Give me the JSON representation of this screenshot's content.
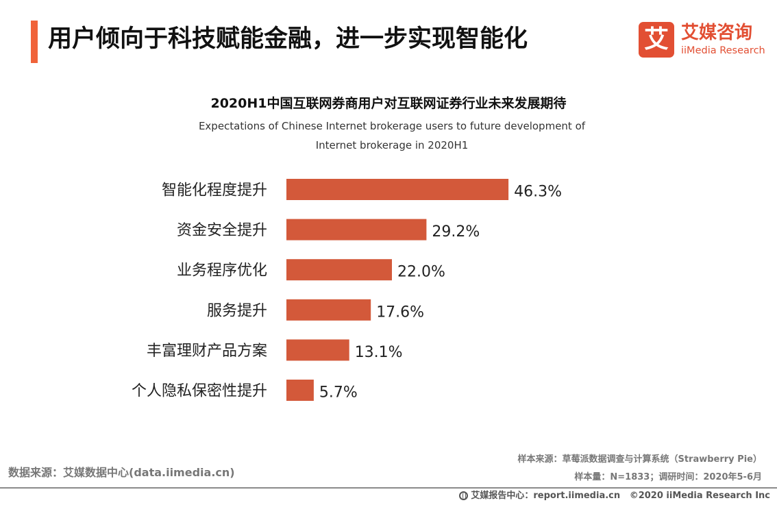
{
  "header": {
    "title": "用户倾向于科技赋能金融，进一步实现智能化",
    "accent_color": "#F0633A"
  },
  "logo": {
    "mark": "艾",
    "name_cn": "艾媒咨询",
    "name_en": "iiMedia Research",
    "color": "#E24F33"
  },
  "chart_data": {
    "type": "bar",
    "orientation": "horizontal",
    "title": "2020H1中国互联网券商用户对互联网证券行业未来发展期待",
    "subtitle_lines": [
      "Expectations of Chinese Internet brokerage users to future development of",
      "Internet brokerage in 2020H1"
    ],
    "categories": [
      "智能化程度提升",
      "资金安全提升",
      "业务程序优化",
      "服务提升",
      "丰富理财产品方案",
      "个人隐私保密性提升"
    ],
    "values": [
      46.3,
      29.2,
      22.0,
      17.6,
      13.1,
      5.7
    ],
    "value_labels": [
      "46.3%",
      "29.2%",
      "22.0%",
      "17.6%",
      "13.1%",
      "5.7%"
    ],
    "unit": "%",
    "xlim": [
      0,
      100
    ],
    "bar_color": "#D3593A",
    "grid": false,
    "legend": "none"
  },
  "footer": {
    "source_left": "数据来源：艾媒数据中心(data.iimedia.cn)",
    "sample_source": "样本来源：草莓派数据调查与计算系统（Strawberry Pie）",
    "sample_info": "样本量：N=1833；调研时间：2020年5-6月",
    "report_center": "艾媒报告中心：report.iimedia.cn",
    "copyright": "©2020 iiMedia Research Inc"
  }
}
